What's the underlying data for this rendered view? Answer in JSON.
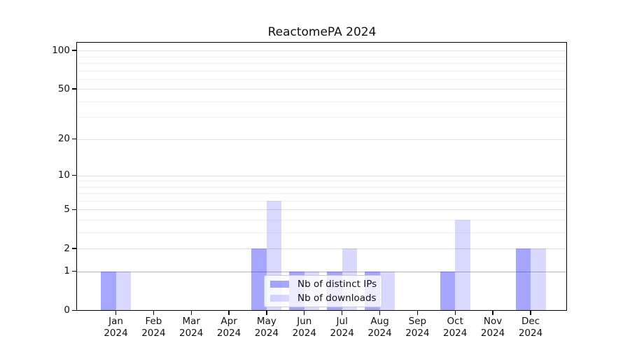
{
  "title": "ReactomePA 2024",
  "colors": {
    "distinct_ips_bar": "rgba(0,0,255,0.35)",
    "downloads_bar": "rgba(0,0,255,0.15)"
  },
  "chart_data": {
    "type": "bar",
    "title": "ReactomePA 2024",
    "categories": [
      "Jan",
      "Feb",
      "Mar",
      "Apr",
      "May",
      "Jun",
      "Jul",
      "Aug",
      "Sep",
      "Oct",
      "Nov",
      "Dec"
    ],
    "year_label": "2024",
    "series": [
      {
        "name": "Nb of distinct IPs",
        "values": [
          1,
          0,
          0,
          0,
          2,
          1,
          1,
          1,
          0,
          1,
          0,
          2
        ]
      },
      {
        "name": "Nb of downloads",
        "values": [
          1,
          0,
          0,
          0,
          6,
          1,
          2,
          1,
          0,
          4,
          0,
          2
        ]
      }
    ],
    "xlabel": "",
    "ylabel": "",
    "yscale": "log1p",
    "ylim": [
      0,
      114
    ],
    "yticks": [
      0,
      1,
      2,
      5,
      10,
      20,
      50,
      100
    ],
    "yticks_minor": [
      3,
      4,
      6,
      7,
      8,
      9,
      30,
      40,
      60,
      70,
      80,
      90
    ],
    "grid": "on",
    "legend_position": "lower center inside"
  }
}
